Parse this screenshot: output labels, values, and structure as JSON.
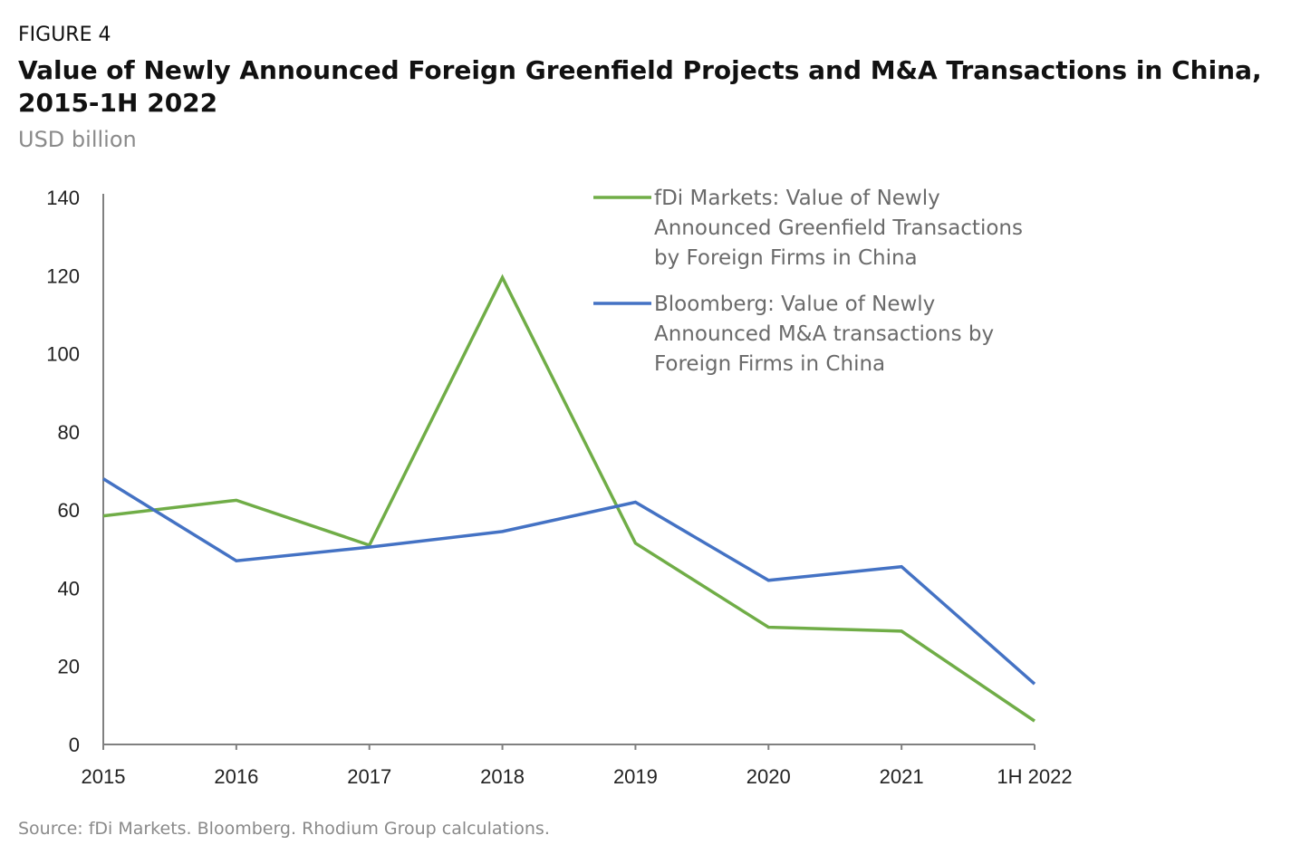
{
  "figure_label": "FIGURE 4",
  "source": "Source: fDi Markets. Bloomberg. Rhodium Group calculations.",
  "colors": {
    "green": "#70ad47",
    "blue": "#4472c4",
    "axis": "#808080"
  },
  "chart_data": {
    "type": "line",
    "title": "Value of Newly Announced Foreign Greenfield Projects and M&A Transactions in China, 2015-1H 2022",
    "ylabel": "USD billion",
    "xlabel": "",
    "categories": [
      "2015",
      "2016",
      "2017",
      "2018",
      "2019",
      "2020",
      "2021",
      "1H 2022"
    ],
    "ylim": [
      0,
      140
    ],
    "yticks": [
      "0",
      "20",
      "40",
      "60",
      "80",
      "100",
      "120",
      "140"
    ],
    "grid": false,
    "legend_position": "top-right",
    "series": [
      {
        "name": "fDi Markets: Value of Newly Announced Greenfield Transactions by Foreign Firms in China",
        "legend_lines": [
          "fDi Markets: Value of Newly",
          "Announced Greenfield Transactions",
          "by Foreign Firms in China"
        ],
        "color": "#70ad47",
        "values": [
          58.5,
          62.5,
          51,
          119.5,
          51.5,
          30,
          29,
          6
        ]
      },
      {
        "name": "Bloomberg: Value of Newly Announced M&A transactions by Foreign Firms in China",
        "legend_lines": [
          "Bloomberg: Value of Newly",
          "Announced M&A transactions by",
          "Foreign Firms in China"
        ],
        "color": "#4472c4",
        "values": [
          68,
          47,
          50.5,
          54.5,
          62,
          42,
          45.5,
          15.5
        ]
      }
    ]
  }
}
